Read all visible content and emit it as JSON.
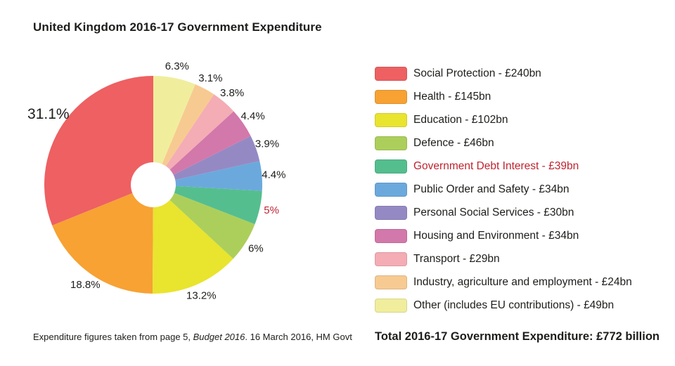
{
  "title": "United Kingdom 2016-17 Government Expenditure",
  "footer": {
    "prefix": "Expenditure figures taken from page 5, ",
    "italic_source": "Budget 2016",
    "suffix": ". 16 March 2016, HM Govt"
  },
  "total_label": "Total 2016-17 Government Expenditure: £772 billion",
  "colors": {
    "text": "#1d1d1b",
    "highlight_red": "#be2430",
    "donut_hole": "#ffffff"
  },
  "legend_separator": " - ",
  "chart_data": {
    "type": "pie",
    "title": "United Kingdom 2016-17 Government Expenditure",
    "total": "£772 billion",
    "shape": "donut",
    "direction": "counterclockwise",
    "start_angle_deg": 0,
    "legend_position": "right",
    "segments": [
      {
        "label": "Social Protection",
        "amount": "£240bn",
        "percent": 31.1,
        "display_percent": "31.1%",
        "color": "#ee6062",
        "highlight": false
      },
      {
        "label": "Health",
        "amount": "£145bn",
        "percent": 18.8,
        "display_percent": "18.8%",
        "color": "#f7a233",
        "highlight": false
      },
      {
        "label": "Education",
        "amount": "£102bn",
        "percent": 13.2,
        "display_percent": "13.2%",
        "color": "#e9e42e",
        "highlight": false
      },
      {
        "label": "Defence",
        "amount": "£46bn",
        "percent": 6.0,
        "display_percent": "6%",
        "color": "#accf5b",
        "highlight": false
      },
      {
        "label": "Government Debt Interest",
        "amount": "£39bn",
        "percent": 5.0,
        "display_percent": "5%",
        "color": "#55be8e",
        "highlight": true
      },
      {
        "label": "Public Order and Safety",
        "amount": "£34bn",
        "percent": 4.4,
        "display_percent": "4.4%",
        "color": "#6ba9dd",
        "highlight": false
      },
      {
        "label": "Personal Social Services",
        "amount": "£30bn",
        "percent": 3.9,
        "display_percent": "3.9%",
        "color": "#9589c4",
        "highlight": false
      },
      {
        "label": "Housing and Environment",
        "amount": "£34bn",
        "percent": 4.4,
        "display_percent": "4.4%",
        "color": "#d378aa",
        "highlight": false
      },
      {
        "label": "Transport",
        "amount": "£29bn",
        "percent": 3.8,
        "display_percent": "3.8%",
        "color": "#f4acb5",
        "highlight": false
      },
      {
        "label": "Industry, agriculture and employment",
        "amount": "£24bn",
        "percent": 3.1,
        "display_percent": "3.1%",
        "color": "#f7ca91",
        "highlight": false
      },
      {
        "label": "Other (includes EU contributions)",
        "amount": "£49bn",
        "percent": 6.3,
        "display_percent": "6.3%",
        "color": "#f0ee9d",
        "highlight": false
      }
    ]
  }
}
